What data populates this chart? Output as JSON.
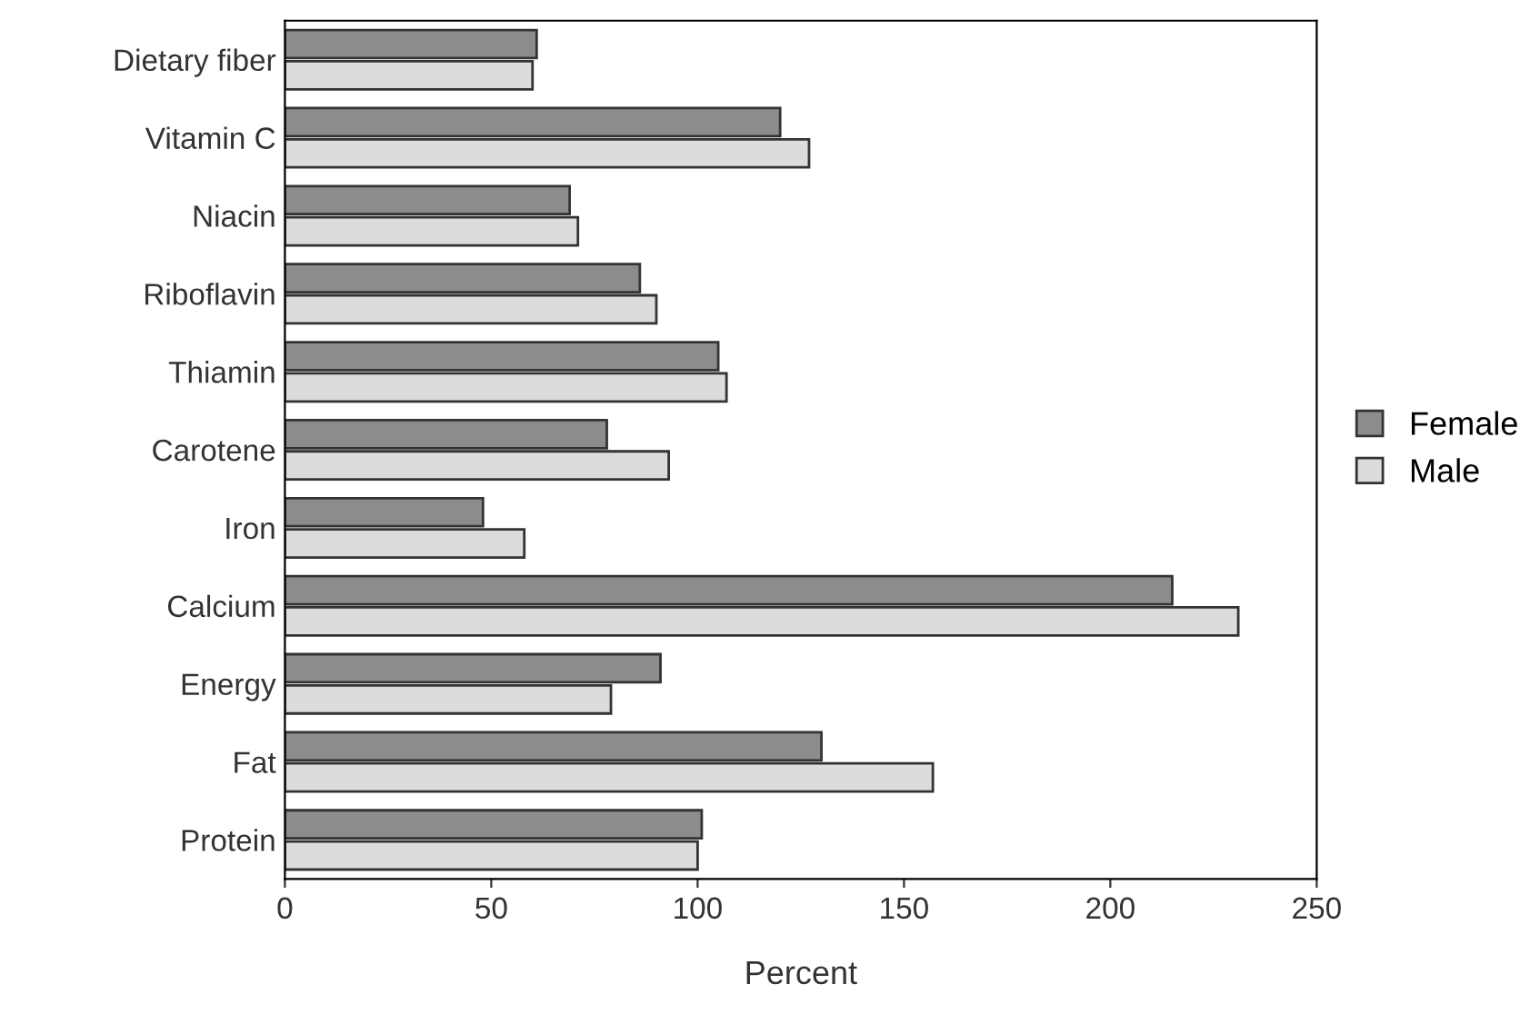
{
  "chart_data": {
    "type": "bar",
    "orientation": "horizontal",
    "xlabel": "Percent",
    "categories": [
      "Dietary fiber",
      "Vitamin C",
      "Niacin",
      "Riboflavin",
      "Thiamin",
      "Carotene",
      "Iron",
      "Calcium",
      "Energy",
      "Fat",
      "Protein"
    ],
    "series": [
      {
        "name": "Female",
        "color": "#8c8c8c",
        "values": [
          61,
          120,
          69,
          86,
          105,
          78,
          48,
          215,
          91,
          130,
          101
        ]
      },
      {
        "name": "Male",
        "color": "#dcdcdc",
        "values": [
          60,
          127,
          71,
          90,
          107,
          93,
          58,
          231,
          79,
          157,
          100
        ]
      }
    ],
    "xlim": [
      0,
      250
    ],
    "xticks": [
      0,
      50,
      100,
      150,
      200,
      250
    ],
    "grid": false,
    "legend": "right"
  }
}
